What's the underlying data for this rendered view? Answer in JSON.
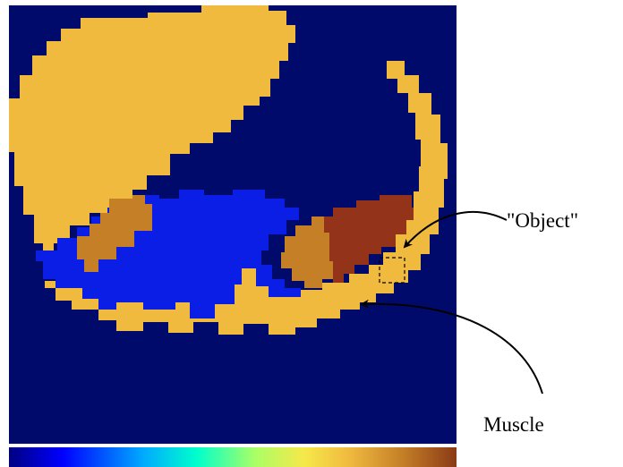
{
  "annotations": {
    "object_label": "\"Object\"",
    "muscle_label": "Muscle"
  },
  "colors": {
    "background": "#000a6b",
    "tissue_yellow": "#f0ba3f",
    "tissue_blue": "#0a1ee6",
    "tissue_orange": "#c47f27",
    "tissue_brown": "#93331a",
    "annotation": "#000000"
  },
  "colorbar": {
    "stops": [
      "#000080",
      "#0000ff",
      "#00aaff",
      "#00ffcc",
      "#aaff66",
      "#f6e84a",
      "#f0ba3f",
      "#c47f27",
      "#8b3a16"
    ]
  }
}
